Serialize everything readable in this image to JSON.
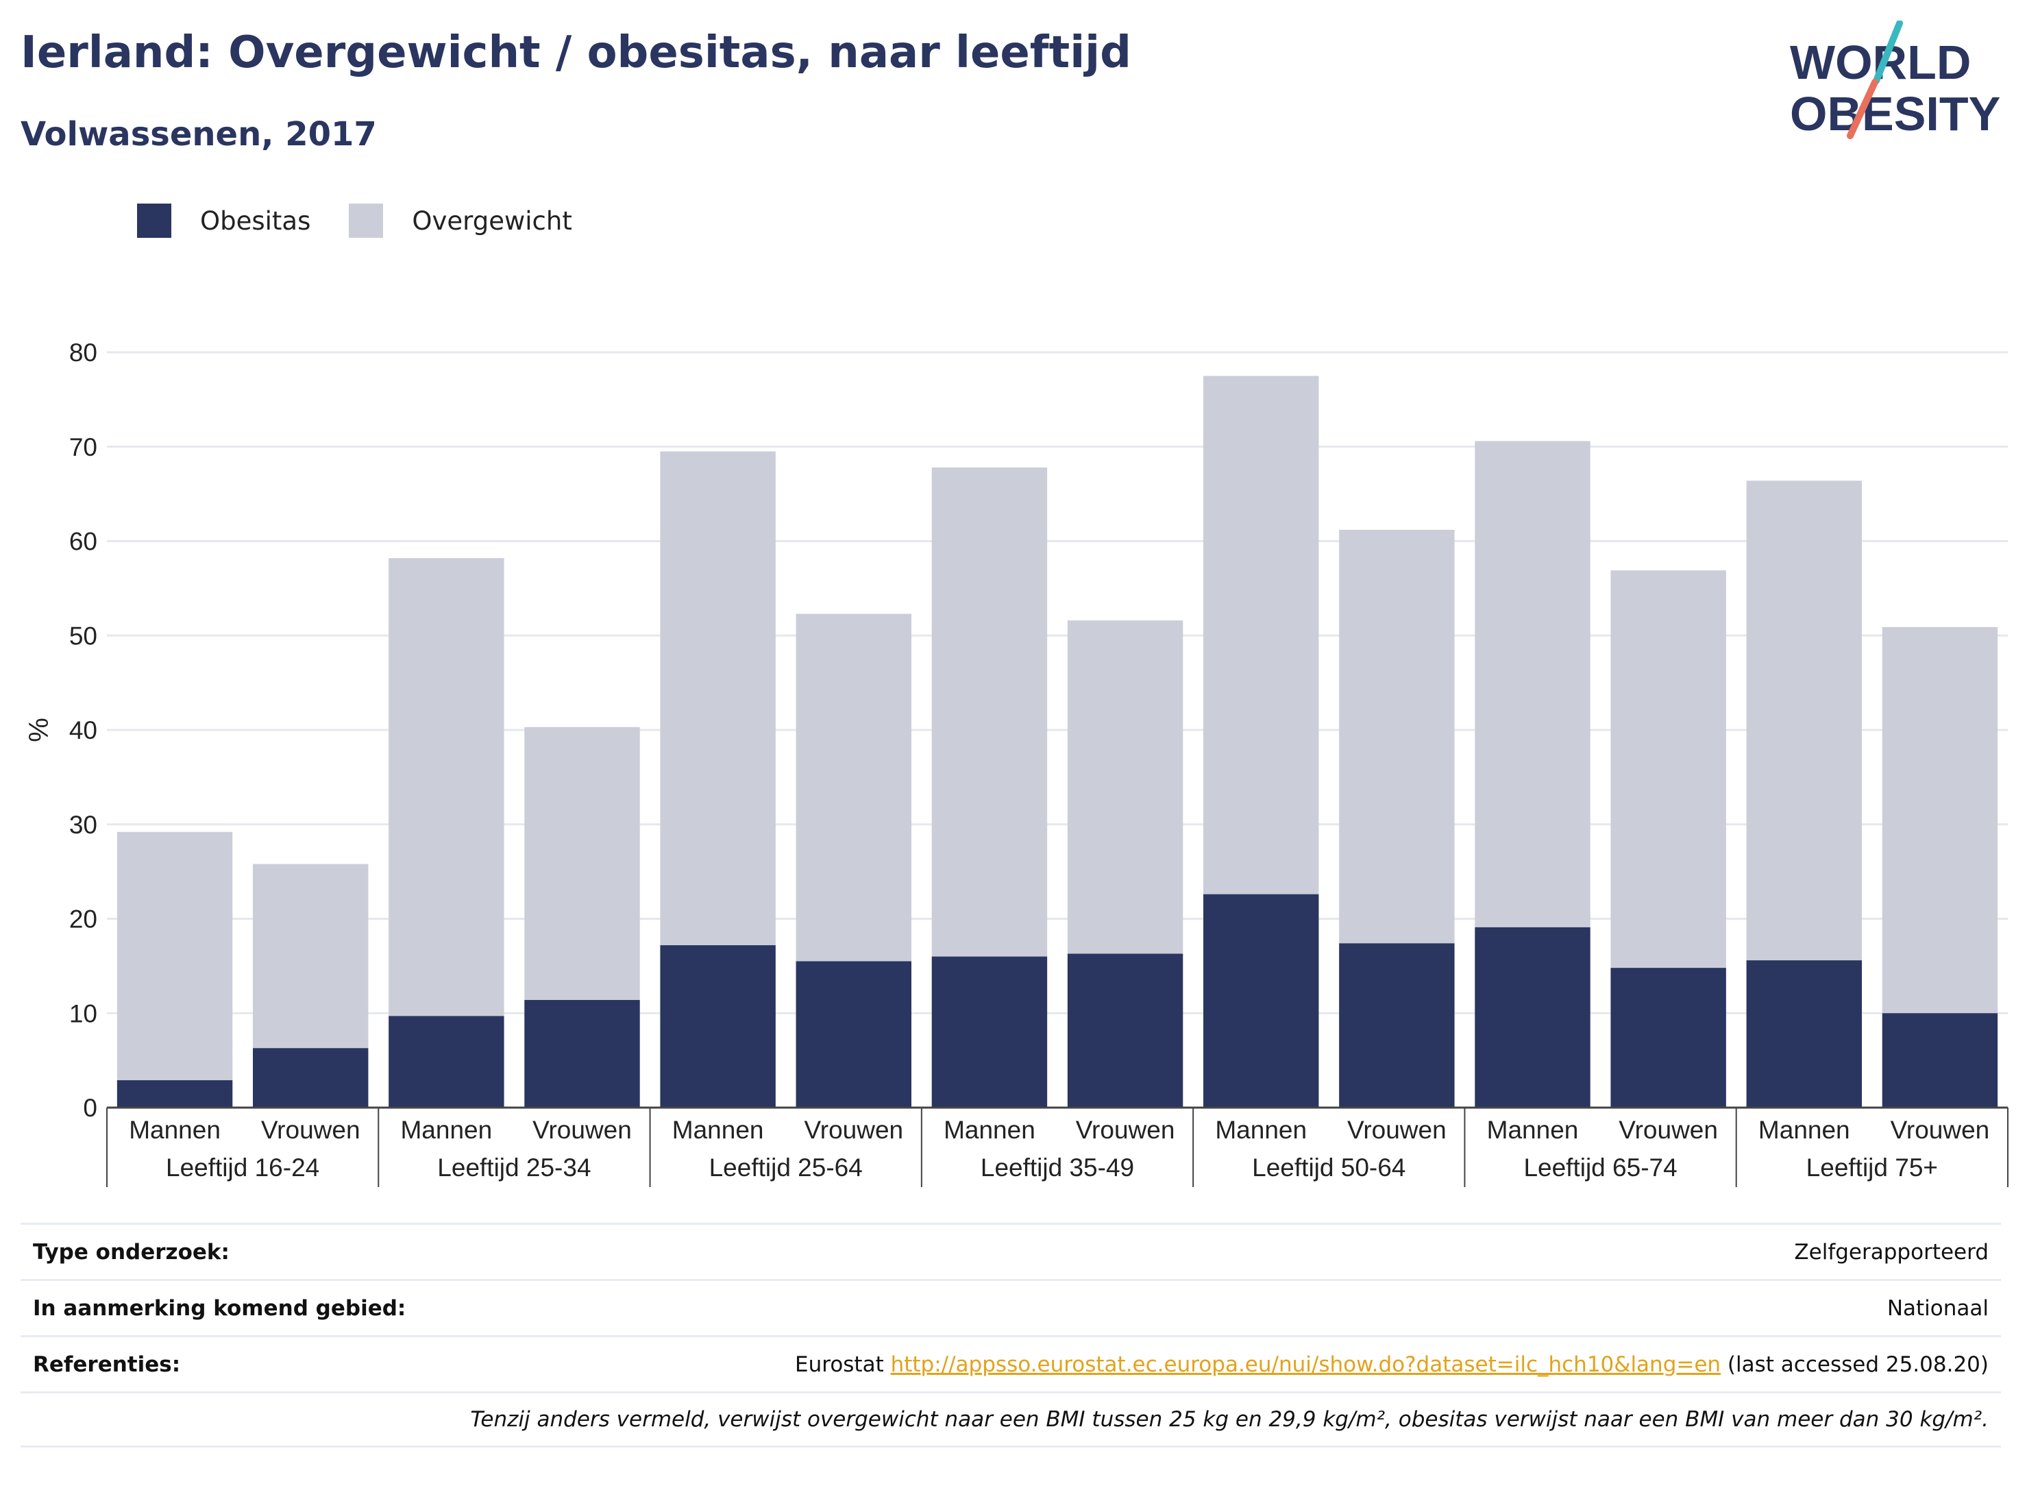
{
  "header": {
    "title": "Ierland: Overgewicht / obesitas, naar leeftijd",
    "subtitle": "Volwassenen, 2017",
    "logo_line1": "WORLD",
    "logo_line2": "OBESITY"
  },
  "legend": {
    "obesity_label": "Obesitas",
    "overweight_label": "Overgewicht"
  },
  "colors": {
    "obesity": "#2a3560",
    "overweight": "#cbcdd9",
    "link": "#e3a21a",
    "logo_teal": "#3ab8c0",
    "logo_coral": "#e8705c"
  },
  "chart_data": {
    "type": "bar",
    "stacked": true,
    "ylabel": "%",
    "ylim": [
      0,
      80
    ],
    "yticks": [
      0,
      10,
      20,
      30,
      40,
      50,
      60,
      70,
      80
    ],
    "grid": true,
    "legend_position": "top-left",
    "groups": [
      "Leeftijd 16-24",
      "Leeftijd 25-34",
      "Leeftijd 25-64",
      "Leeftijd 35-49",
      "Leeftijd 50-64",
      "Leeftijd 65-74",
      "Leeftijd 75+"
    ],
    "subcategories": [
      "Mannen",
      "Vrouwen"
    ],
    "series": [
      {
        "name": "Obesitas",
        "values": [
          2.9,
          6.3,
          9.7,
          11.4,
          17.2,
          15.5,
          16.0,
          16.3,
          22.6,
          17.4,
          19.1,
          14.8,
          15.6,
          10.0
        ]
      },
      {
        "name": "Overgewicht",
        "values": [
          26.3,
          19.5,
          48.5,
          28.9,
          52.3,
          36.8,
          51.8,
          35.3,
          54.9,
          43.8,
          51.5,
          42.1,
          50.8,
          40.9
        ]
      }
    ]
  },
  "info": {
    "survey_type_label": "Type onderzoek:",
    "survey_type_value": "Zelfgerapporteerd",
    "area_label": "In aanmerking komend gebied:",
    "area_value": "Nationaal",
    "references_label": "Referenties:",
    "ref_prefix": "Eurostat ",
    "ref_link": "http://appsso.eurostat.ec.europa.eu/nui/show.do?dataset=ilc_hch10&lang=en",
    "ref_suffix": " (last accessed 25.08.20)",
    "note": "Tenzij anders vermeld, verwijst overgewicht naar een BMI tussen 25 kg en 29,9 kg/m², obesitas verwijst naar een BMI van meer dan 30 kg/m²."
  }
}
